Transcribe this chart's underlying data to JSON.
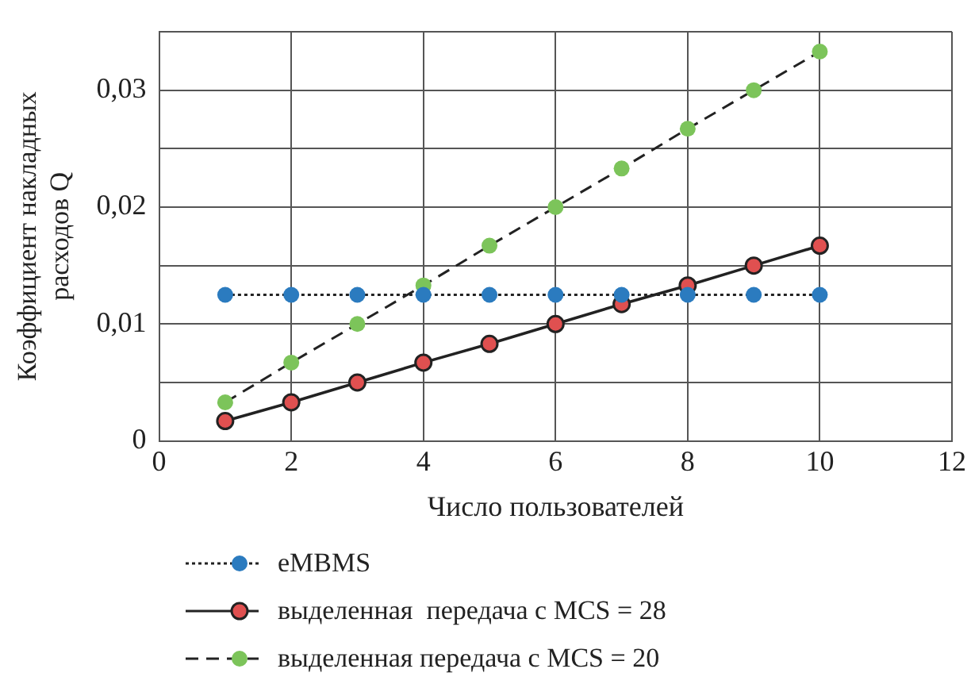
{
  "chart_data": {
    "type": "line",
    "xlabel": "Число пользователей",
    "ylabel": "Коэффициент накладных расходов Q",
    "xlim": [
      0,
      12
    ],
    "xticks": [
      0,
      2,
      4,
      6,
      8,
      10,
      12
    ],
    "ylim": [
      0,
      0.035
    ],
    "yticks": [
      {
        "value": 0,
        "label": "0"
      },
      {
        "value": 0.005,
        "label": null
      },
      {
        "value": 0.01,
        "label": "0,01"
      },
      {
        "value": 0.015,
        "label": null
      },
      {
        "value": 0.02,
        "label": "0,02"
      },
      {
        "value": 0.025,
        "label": null
      },
      {
        "value": 0.03,
        "label": "0,03"
      },
      {
        "value": 0.035,
        "label": null
      }
    ],
    "grid": true,
    "legend": "bottom",
    "marker": "circle",
    "x": [
      1,
      2,
      3,
      4,
      5,
      6,
      7,
      8,
      9,
      10
    ],
    "series": [
      {
        "name": "eMBMS",
        "color": "#2b7bbf",
        "line_style": "dotted",
        "values": [
          0.0125,
          0.0125,
          0.0125,
          0.0125,
          0.0125,
          0.0125,
          0.0125,
          0.0125,
          0.0125,
          0.0125
        ]
      },
      {
        "name": "выделенная  передача с MCS = 28",
        "color": "#e05050",
        "line_style": "solid",
        "values": [
          0.0017,
          0.0033,
          0.005,
          0.0067,
          0.0083,
          0.01,
          0.0117,
          0.0133,
          0.015,
          0.0167
        ]
      },
      {
        "name": "выделенная передача с MCS = 20",
        "color": "#7cc45a",
        "line_style": "dashed",
        "values": [
          0.0033,
          0.0067,
          0.01,
          0.0133,
          0.0167,
          0.02,
          0.0233,
          0.0267,
          0.03,
          0.0333
        ]
      }
    ]
  }
}
